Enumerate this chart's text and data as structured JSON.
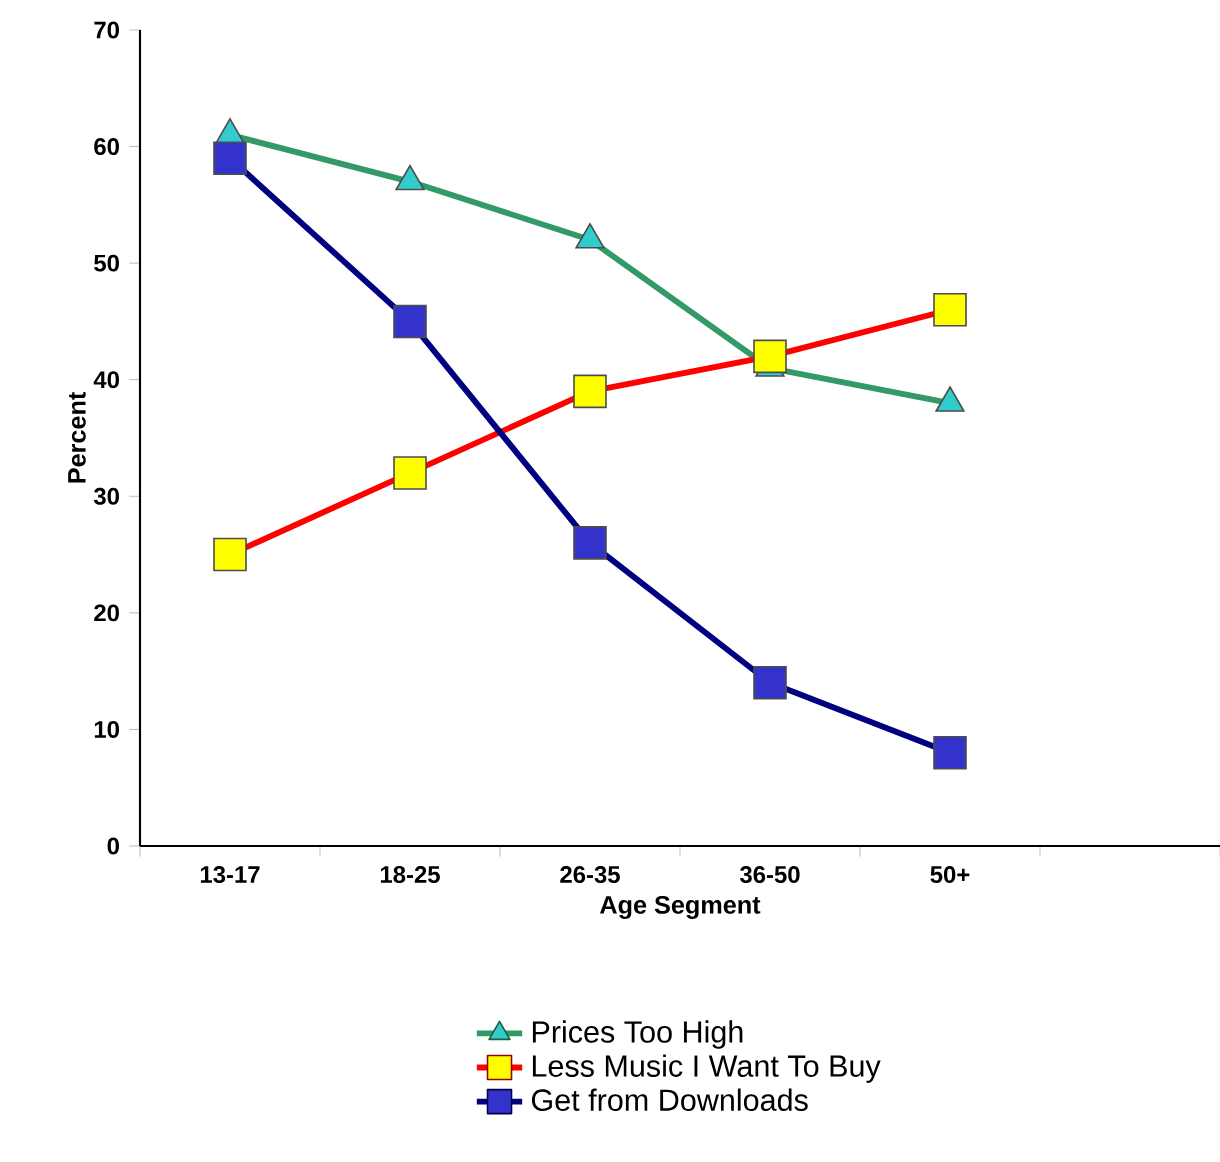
{
  "chart_data": {
    "type": "line",
    "xlabel": "Age Segment",
    "ylabel": "Percent",
    "categories": [
      "13-17",
      "18-25",
      "26-35",
      "36-50",
      "50+",
      null
    ],
    "series": [
      {
        "name": "Prices Too High",
        "color": "#339966",
        "marker": "triangle",
        "colors": [
          "#33cccc",
          "#33cccc",
          "#33cccc",
          "#33cccc",
          "#33cccc",
          null
        ],
        "values": [
          61,
          57,
          52,
          41,
          38,
          null
        ]
      },
      {
        "name": "Less Music I Want To Buy",
        "color": "#ff0000",
        "marker": "square",
        "colors": [
          "#ffff00",
          "#ffff00",
          "#ffff00",
          "#ffff00",
          "#ffff00",
          null
        ],
        "values": [
          25,
          32,
          39,
          42,
          46,
          null
        ]
      },
      {
        "name": "Get from Downloads",
        "color": "#000080",
        "marker": "square",
        "colors": [
          "#3333cc",
          "#3333cc",
          "#3333cc",
          "#3333cc",
          "#3333cc",
          null
        ],
        "values": [
          59,
          45,
          26,
          14,
          8,
          null
        ]
      }
    ],
    "ylim": [
      0,
      70
    ],
    "yticks": [
      0,
      10,
      20,
      30,
      40,
      50,
      60,
      70
    ],
    "grid": false,
    "legend": "bottom"
  }
}
